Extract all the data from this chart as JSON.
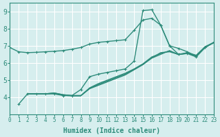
{
  "xlabel": "Humidex (Indice chaleur)",
  "ylabel": "",
  "bg_color": "#d6eeee",
  "grid_color": "#ffffff",
  "line_color": "#2d8b7a",
  "xlim": [
    0,
    23
  ],
  "ylim": [
    3,
    9.5
  ],
  "xticks": [
    0,
    1,
    2,
    3,
    4,
    5,
    6,
    7,
    8,
    9,
    10,
    11,
    12,
    13,
    14,
    15,
    16,
    17,
    18,
    19,
    20,
    21,
    22,
    23
  ],
  "yticks": [
    4,
    5,
    6,
    7,
    8,
    9
  ],
  "line1": {
    "x": [
      0,
      1,
      2,
      3,
      4,
      5,
      6,
      7,
      8,
      9,
      10,
      11,
      12,
      13,
      14,
      15,
      16,
      17,
      18,
      19,
      20,
      21,
      22,
      23
    ],
    "y": [
      6.9,
      6.65,
      6.6,
      6.62,
      6.65,
      6.68,
      6.72,
      6.8,
      6.9,
      7.1,
      7.2,
      7.25,
      7.3,
      7.35,
      7.9,
      8.5,
      8.6,
      8.2,
      7.0,
      6.85,
      6.65,
      6.4,
      6.9,
      7.2
    ]
  },
  "line2": {
    "x": [
      1,
      2,
      3,
      4,
      5,
      6,
      7,
      8,
      9,
      10,
      11,
      12,
      13,
      14,
      15,
      16,
      17,
      18,
      19,
      20,
      21,
      22,
      23
    ],
    "y": [
      3.6,
      4.2,
      4.2,
      4.2,
      4.2,
      4.1,
      4.1,
      4.45,
      5.2,
      5.35,
      5.45,
      5.55,
      5.65,
      6.1,
      9.05,
      9.1,
      8.2,
      7.0,
      6.5,
      6.55,
      6.35,
      6.9,
      7.2
    ]
  },
  "line3": {
    "x": [
      2,
      3,
      4,
      5,
      6,
      7,
      8,
      9,
      10,
      11,
      12,
      13,
      14,
      15,
      16,
      17,
      18,
      19,
      20,
      21,
      22,
      23
    ],
    "y": [
      4.2,
      4.2,
      4.2,
      4.25,
      4.15,
      4.1,
      4.1,
      4.5,
      4.7,
      4.9,
      5.1,
      5.3,
      5.6,
      5.9,
      6.3,
      6.6,
      6.65,
      6.5,
      6.55,
      6.4,
      6.9,
      7.2
    ]
  },
  "line4": {
    "x": [
      2,
      3,
      4,
      5,
      6,
      7,
      8,
      9,
      10,
      11,
      12,
      13,
      14,
      15,
      16,
      17,
      18,
      19,
      20,
      21,
      22,
      23
    ],
    "y": [
      4.2,
      4.2,
      4.2,
      4.25,
      4.15,
      4.1,
      4.1,
      4.55,
      4.8,
      5.0,
      5.2,
      5.4,
      5.65,
      5.95,
      6.35,
      6.55,
      6.7,
      6.5,
      6.6,
      6.45,
      6.95,
      7.2
    ]
  },
  "line5": {
    "x": [
      2,
      3,
      4,
      5,
      6,
      7,
      8,
      9,
      10,
      11,
      12,
      13,
      14,
      15,
      16,
      17,
      18,
      19,
      20,
      21,
      22,
      23
    ],
    "y": [
      4.2,
      4.2,
      4.2,
      4.22,
      4.12,
      4.08,
      4.08,
      4.52,
      4.75,
      4.95,
      5.15,
      5.35,
      5.62,
      5.92,
      6.28,
      6.5,
      6.72,
      6.48,
      6.58,
      6.42,
      6.92,
      7.18
    ]
  }
}
